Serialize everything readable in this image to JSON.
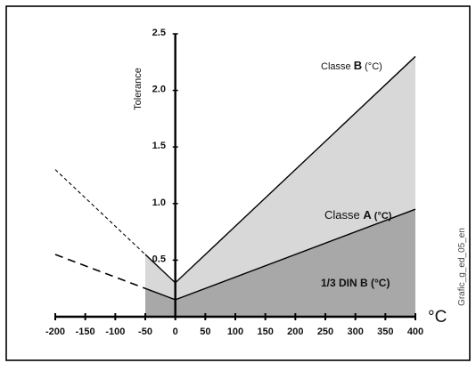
{
  "chart_data": {
    "type": "line",
    "title": "",
    "xlabel": "°C",
    "ylabel": "Tolerance",
    "xlim": [
      -200,
      400
    ],
    "ylim": [
      0,
      2.5
    ],
    "x_ticks": [
      -200,
      -150,
      -100,
      -50,
      0,
      50,
      100,
      150,
      200,
      250,
      300,
      350,
      400
    ],
    "y_ticks": [
      {
        "value": 0.5,
        "label": "0.5"
      },
      {
        "value": 1.0,
        "label": "1.0"
      },
      {
        "value": 1.5,
        "label": "1.5"
      },
      {
        "value": 2.0,
        "label": "2.0"
      },
      {
        "value": 2.5,
        "label": "2.5"
      }
    ],
    "series": [
      {
        "name": "Classe B (°C)",
        "label_main": "Classe ",
        "label_bold": "B",
        "label_tail": " (°C)",
        "fill": "#d8d8d8",
        "x": [
          -200,
          -50,
          0,
          400
        ],
        "y": [
          1.3,
          0.55,
          0.3,
          2.3
        ],
        "extrapolated_x": [
          -200,
          -50
        ]
      },
      {
        "name": "Classe A (°C)",
        "label_main": "Classe ",
        "label_bold": "A",
        "label_tail": " (°C)",
        "fill": "#a8a8a8",
        "x": [
          -200,
          -50,
          0,
          400
        ],
        "y": [
          0.55,
          0.25,
          0.15,
          0.95
        ],
        "extrapolated_x": [
          -200,
          -50
        ]
      }
    ],
    "annotations": [
      {
        "text": "1/3 DIN B (°C)",
        "x": 335,
        "y": 0.33
      }
    ],
    "grid": false,
    "legend": "inline labels"
  },
  "side_text": "Grafic_g_ed_05_en"
}
